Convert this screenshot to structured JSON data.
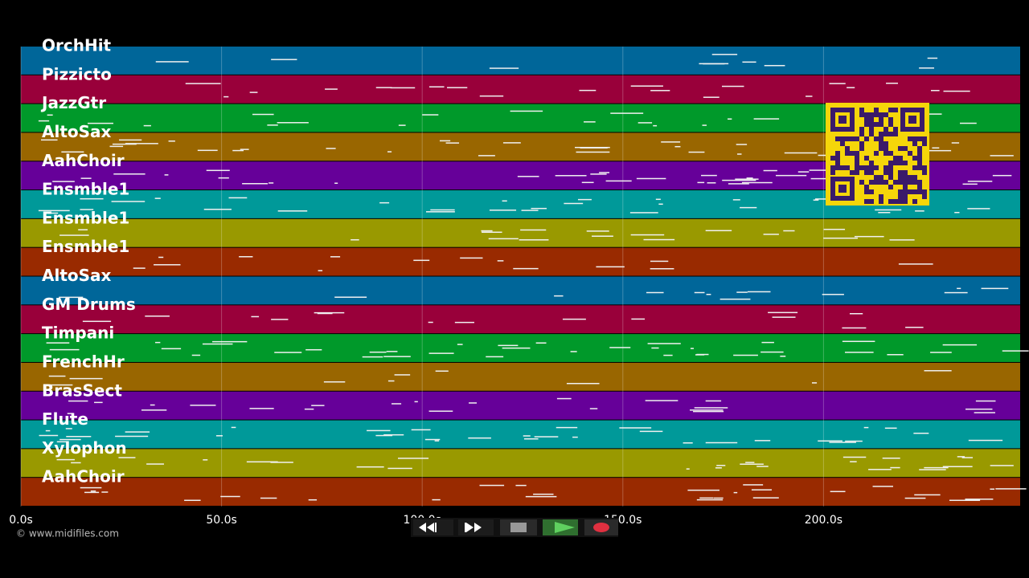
{
  "tracks": [
    {
      "name": "OrchHit",
      "color": "#006699"
    },
    {
      "name": "Pizzicto",
      "color": "#99003a"
    },
    {
      "name": "JazzGtr",
      "color": "#00992a"
    },
    {
      "name": "AltoSax",
      "color": "#996600"
    },
    {
      "name": "AahChoir",
      "color": "#660099"
    },
    {
      "name": "Ensmble1",
      "color": "#009999"
    },
    {
      "name": "Ensmble1",
      "color": "#999900"
    },
    {
      "name": "Ensmble1",
      "color": "#992a00"
    },
    {
      "name": "AltoSax",
      "color": "#006699"
    },
    {
      "name": "GM Drums",
      "color": "#99003a"
    },
    {
      "name": "Timpani",
      "color": "#00992a"
    },
    {
      "name": "FrenchHr",
      "color": "#996600"
    },
    {
      "name": "BrasSect",
      "color": "#660099"
    },
    {
      "name": "Flute",
      "color": "#009999"
    },
    {
      "name": "Xylophon",
      "color": "#999900"
    },
    {
      "name": "AahChoir",
      "color": "#992a00"
    }
  ],
  "timeline": {
    "xlim": [
      0,
      249
    ],
    "ticks": [
      {
        "value": 0,
        "label": "0.0s"
      },
      {
        "value": 50,
        "label": "50.0s"
      },
      {
        "value": 100,
        "label": "100.0s"
      },
      {
        "value": 150,
        "label": "150.0s"
      },
      {
        "value": 200,
        "label": "200.0s"
      }
    ]
  },
  "footer": {
    "copyright": "© www.midifiles.com"
  }
}
